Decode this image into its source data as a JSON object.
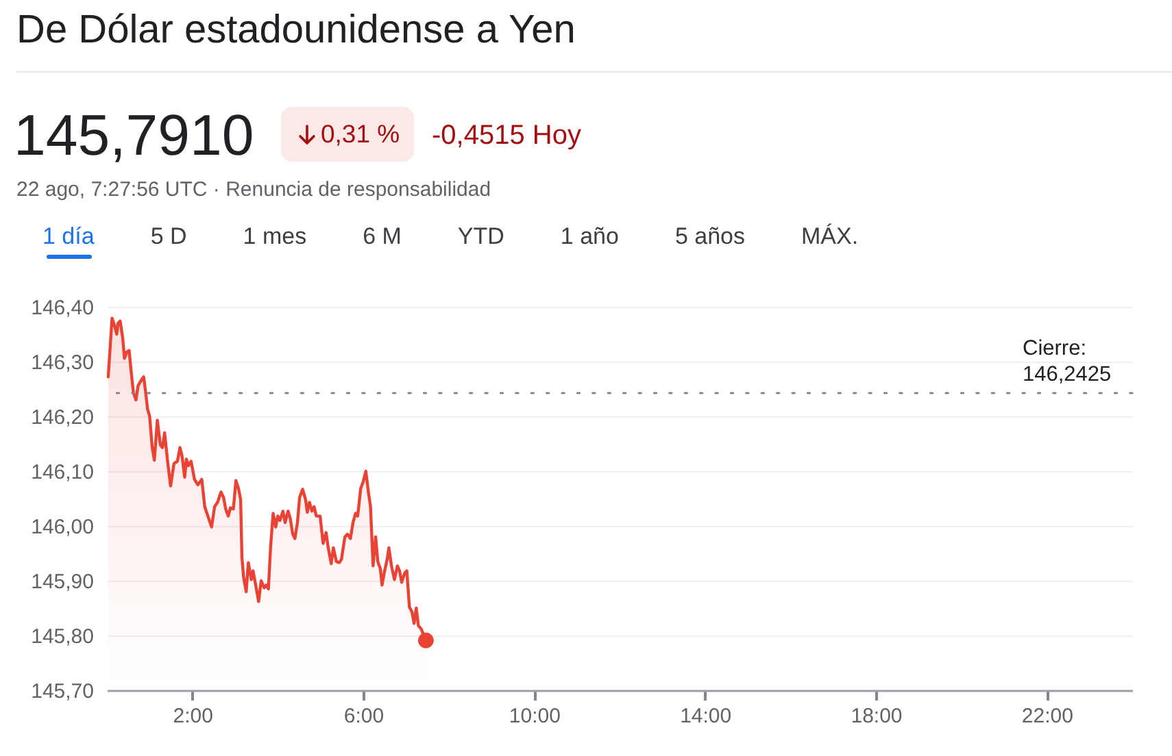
{
  "chart_data": {
    "type": "area",
    "title": "De Dólar estadounidense a Yen",
    "subtitle": "22 ago, 7:27:56 UTC · Renuncia de responsabilidad",
    "annotations": [
      "145,7910",
      "0,31 %",
      "-0,4515 Hoy",
      "1 día",
      "5 D",
      "1 mes",
      "6 M",
      "YTD",
      "1 año",
      "5 años",
      "MÁX."
    ],
    "xlim": [
      0,
      24
    ],
    "xticks": [
      {
        "value": 2,
        "label": "2:00"
      },
      {
        "value": 6,
        "label": "6:00"
      },
      {
        "value": 10,
        "label": "10:00"
      },
      {
        "value": 14,
        "label": "14:00"
      },
      {
        "value": 18,
        "label": "18:00"
      },
      {
        "value": 22,
        "label": "22:00"
      }
    ],
    "ylim": [
      145.7,
      146.4
    ],
    "yticks": [
      {
        "value": 145.7,
        "label": "145,70"
      },
      {
        "value": 145.8,
        "label": "145,80"
      },
      {
        "value": 145.9,
        "label": "145,90"
      },
      {
        "value": 146.0,
        "label": "146,00"
      },
      {
        "value": 146.1,
        "label": "146,10"
      },
      {
        "value": 146.2,
        "label": "146,20"
      },
      {
        "value": 146.3,
        "label": "146,30"
      },
      {
        "value": 146.4,
        "label": "146,40"
      }
    ],
    "grid": "y",
    "ref_lines": [
      {
        "axis": "y",
        "value": 146.2425,
        "label": "Cierre:\n146,2425",
        "color": "#80868b",
        "line_style": "dotted"
      }
    ],
    "series": [
      {
        "color": "#ea4335",
        "x": [
          0.03,
          0.12,
          0.17,
          0.23,
          0.26,
          0.31,
          0.37,
          0.41,
          0.47,
          0.52,
          0.57,
          0.62,
          0.68,
          0.73,
          0.82,
          0.86,
          0.9,
          0.95,
          1.0,
          1.06,
          1.11,
          1.18,
          1.25,
          1.3,
          1.35,
          1.42,
          1.49,
          1.57,
          1.65,
          1.71,
          1.76,
          1.82,
          1.86,
          1.91,
          1.97,
          2.05,
          2.13,
          2.22,
          2.29,
          2.38,
          2.45,
          2.52,
          2.59,
          2.67,
          2.73,
          2.78,
          2.84,
          2.89,
          2.96,
          3.02,
          3.08,
          3.13,
          3.16,
          3.2,
          3.26,
          3.31,
          3.38,
          3.42,
          3.48,
          3.55,
          3.61,
          3.68,
          3.73,
          3.78,
          3.83,
          3.89,
          3.95,
          4.0,
          4.05,
          4.12,
          4.17,
          4.24,
          4.29,
          4.35,
          4.4,
          4.46,
          4.51,
          4.58,
          4.65,
          4.69,
          4.74,
          4.8,
          4.85,
          4.9,
          4.99,
          5.06,
          5.13,
          5.18,
          5.25,
          5.3,
          5.37,
          5.44,
          5.49,
          5.57,
          5.63,
          5.7,
          5.76,
          5.82,
          5.87,
          5.94,
          6.0,
          6.06,
          6.12,
          6.17,
          6.23,
          6.29,
          6.34,
          6.4,
          6.44,
          6.49,
          6.56,
          6.6,
          6.66,
          6.73,
          6.8,
          6.85,
          6.9,
          6.97,
          7.02,
          7.08,
          7.14,
          7.19,
          7.24,
          7.29,
          7.355,
          7.466
        ],
        "values": [
          146.272,
          146.379,
          146.368,
          146.35,
          146.37,
          146.374,
          146.343,
          146.306,
          146.318,
          146.32,
          146.28,
          146.243,
          146.23,
          146.256,
          146.268,
          146.272,
          146.248,
          146.214,
          146.2,
          146.143,
          146.12,
          146.193,
          146.148,
          146.143,
          146.17,
          146.118,
          146.073,
          146.114,
          146.118,
          146.143,
          146.127,
          146.089,
          146.122,
          146.11,
          146.118,
          146.085,
          146.075,
          146.085,
          146.035,
          146.014,
          145.998,
          146.035,
          146.043,
          146.062,
          146.052,
          146.031,
          146.018,
          146.033,
          146.031,
          146.083,
          146.068,
          146.048,
          145.943,
          145.906,
          145.88,
          145.933,
          145.902,
          145.918,
          145.893,
          145.862,
          145.9,
          145.887,
          145.892,
          145.885,
          145.96,
          146.023,
          145.998,
          146.018,
          146.01,
          146.027,
          146.006,
          146.027,
          146.014,
          145.985,
          145.977,
          146.006,
          146.052,
          146.067,
          146.048,
          146.025,
          146.043,
          146.027,
          146.035,
          146.018,
          146.018,
          145.968,
          145.988,
          145.96,
          145.931,
          145.96,
          145.935,
          145.933,
          145.939,
          145.98,
          145.985,
          145.977,
          146.006,
          146.023,
          146.018,
          146.068,
          146.081,
          146.1,
          146.062,
          146.035,
          145.927,
          145.98,
          145.935,
          145.922,
          145.892,
          145.914,
          145.939,
          145.96,
          145.927,
          145.902,
          145.927,
          145.918,
          145.897,
          145.914,
          145.918,
          145.852,
          145.843,
          145.822,
          145.85,
          145.818,
          145.812,
          145.791
        ]
      },
      {
        "type": "scatter",
        "color": "#ea4335",
        "x": [
          7.466
        ],
        "values": [
          145.791
        ]
      }
    ]
  }
}
